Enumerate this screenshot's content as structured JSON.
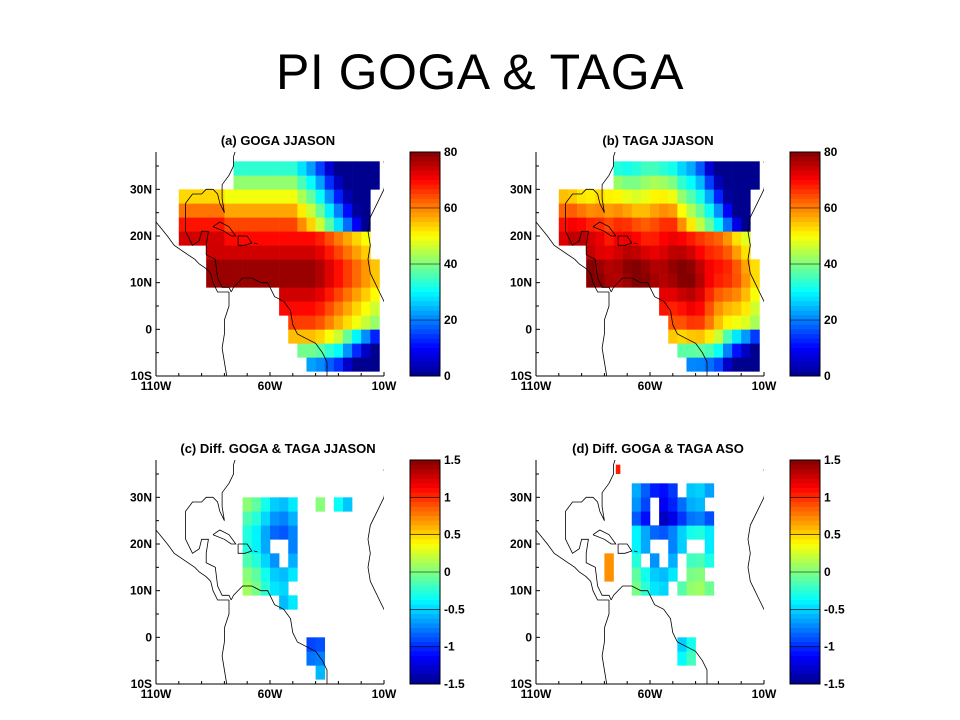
{
  "slide": {
    "title": "PI GOGA & TAGA"
  },
  "panels": [
    {
      "id": "a",
      "title": "(a) GOGA JJASON",
      "field": "mean",
      "colorbar": {
        "ticks": [
          "80",
          "60",
          "40",
          "20",
          "0"
        ]
      }
    },
    {
      "id": "b",
      "title": "(b) TAGA JJASON",
      "field": "mean",
      "colorbar": {
        "ticks": [
          "80",
          "60",
          "40",
          "20",
          "0"
        ]
      }
    },
    {
      "id": "c",
      "title": "(c) Diff. GOGA & TAGA JJASON",
      "field": "diff",
      "colorbar": {
        "ticks": [
          "1.5",
          "1",
          "0.5",
          "0",
          "-0.5",
          "-1",
          "-1.5"
        ]
      }
    },
    {
      "id": "d",
      "title": "(d) Diff. GOGA & TAGA ASO",
      "field": "diff_aso",
      "colorbar": {
        "ticks": [
          "1.5",
          "1",
          "0.5",
          "0",
          "-0.5",
          "-1",
          "-1.5"
        ]
      }
    }
  ],
  "axes": {
    "lat_labels": [
      "30N",
      "20N",
      "10N",
      "0",
      "10S"
    ],
    "lon_labels": [
      "110W",
      "60W",
      "10W"
    ]
  },
  "colors": {
    "scale": [
      "#00008f",
      "#0000ff",
      "#0080ff",
      "#00ffff",
      "#80ff80",
      "#ffff00",
      "#ff8000",
      "#ff0000",
      "#800000"
    ],
    "coastline": "#000000"
  },
  "icons": {
    "map": "coastline-map-icon"
  }
}
